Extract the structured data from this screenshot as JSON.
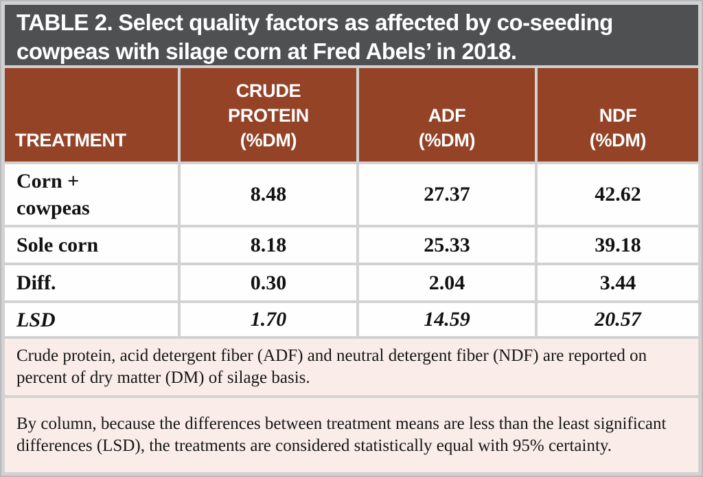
{
  "title": {
    "label": "TABLE 2.",
    "text": "Select quality factors as affected by co-seeding cowpeas with silage corn at Fred Abels’ in 2018."
  },
  "table": {
    "columns": [
      {
        "name": "TREATMENT",
        "unit": ""
      },
      {
        "name": "CRUDE PROTEIN",
        "unit": "(%DM)"
      },
      {
        "name": "ADF",
        "unit": "(%DM)"
      },
      {
        "name": "NDF",
        "unit": "(%DM)"
      }
    ],
    "rows": [
      {
        "treatment": "Corn + cowpeas",
        "crude_protein": "8.48",
        "adf": "27.37",
        "ndf": "42.62"
      },
      {
        "treatment": "Sole corn",
        "crude_protein": "8.18",
        "adf": "25.33",
        "ndf": "39.18"
      },
      {
        "treatment": "Diff.",
        "crude_protein": "0.30",
        "adf": "2.04",
        "ndf": "3.44"
      },
      {
        "treatment": "LSD",
        "crude_protein": "1.70",
        "adf": "14.59",
        "ndf": "20.57"
      }
    ]
  },
  "notes": [
    "Crude protein, acid detergent fiber (ADF) and neutral detergent fiber (NDF) are reported on percent of dry matter (DM) of silage basis.",
    "By column, because the differences between treatment means are less than the least significant differences (LSD), the treatments are considered statistically equal with 95% certainty."
  ],
  "colors": {
    "title_bar_bg": "#4f5052",
    "header_row_bg": "#944327",
    "note_bg": "#f9ece9",
    "divider": "#d2d2d2",
    "header_text": "#ffffff",
    "body_text": "#121212"
  },
  "chart_data": {
    "type": "table",
    "title": "TABLE 2. Select quality factors as affected by co-seeding cowpeas with silage corn at Fred Abels’ in 2018.",
    "columns": [
      "TREATMENT",
      "CRUDE PROTEIN (%DM)",
      "ADF (%DM)",
      "NDF (%DM)"
    ],
    "rows": [
      [
        "Corn + cowpeas",
        8.48,
        27.37,
        42.62
      ],
      [
        "Sole corn",
        8.18,
        25.33,
        39.18
      ],
      [
        "Diff.",
        0.3,
        2.04,
        3.44
      ],
      [
        "LSD",
        1.7,
        14.59,
        20.57
      ]
    ],
    "footnotes": [
      "Crude protein, acid detergent fiber (ADF) and neutral detergent fiber (NDF) are reported on percent of dry matter (DM) of silage basis.",
      "By column, because the differences between treatment means are less than the least significant differences (LSD), the treatments are considered statistically equal with 95% certainty."
    ]
  }
}
